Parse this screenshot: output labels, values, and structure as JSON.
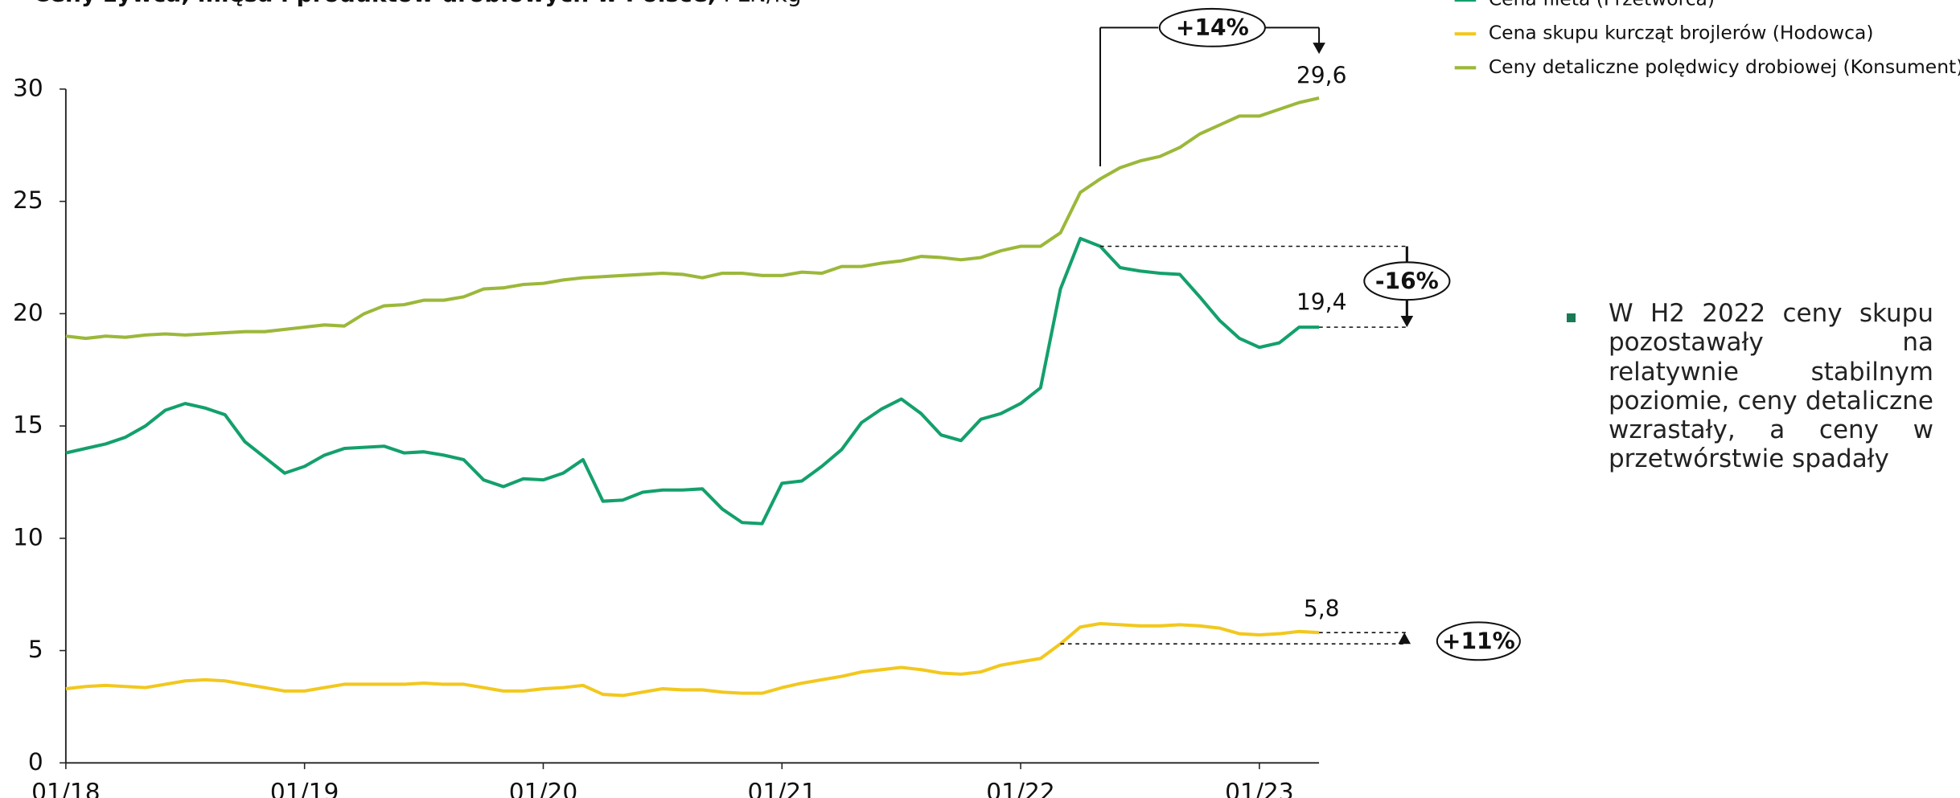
{
  "chart_data": {
    "type": "line",
    "title": "Ceny żywca, mięsa i produktów drobiowych w Polsce,",
    "unit": "PLN/kg",
    "categories": [
      "01/18",
      null,
      null,
      null,
      null,
      null,
      null,
      null,
      null,
      null,
      null,
      null,
      "01/19",
      null,
      null,
      null,
      null,
      null,
      null,
      null,
      null,
      null,
      null,
      null,
      "01/20",
      null,
      null,
      null,
      null,
      null,
      null,
      null,
      null,
      null,
      null,
      null,
      "01/21",
      null,
      null,
      null,
      null,
      null,
      null,
      null,
      null,
      null,
      null,
      null,
      "01/22",
      null,
      null,
      null,
      null,
      null,
      null,
      null,
      null,
      null,
      null,
      null,
      "01/23",
      null,
      null,
      null
    ],
    "series": [
      {
        "name": "Cena fileta (Przetwórca)",
        "color": "#13a06c",
        "values": [
          13.8,
          14.0,
          14.2,
          14.5,
          15.0,
          15.7,
          16.0,
          15.8,
          15.5,
          14.3,
          13.6,
          12.9,
          13.2,
          13.7,
          14.0,
          14.05,
          14.1,
          13.8,
          13.85,
          13.7,
          13.5,
          12.6,
          12.3,
          12.65,
          12.6,
          12.9,
          13.5,
          11.65,
          11.7,
          12.05,
          12.15,
          12.15,
          12.2,
          11.3,
          10.7,
          10.65,
          12.45,
          12.55,
          13.2,
          13.95,
          15.15,
          15.75,
          16.2,
          15.55,
          14.6,
          14.35,
          15.3,
          15.55,
          16.0,
          16.7,
          21.1,
          23.35,
          23.0,
          22.05,
          21.9,
          21.8,
          21.75,
          20.75,
          19.7,
          18.9,
          18.5,
          18.7,
          19.4,
          19.4
        ]
      },
      {
        "name": "Cena skupu kurcząt brojlerów (Hodowca)",
        "color": "#f2c81e",
        "values": [
          3.3,
          3.4,
          3.45,
          3.4,
          3.35,
          3.5,
          3.65,
          3.7,
          3.65,
          3.5,
          3.35,
          3.2,
          3.2,
          3.35,
          3.5,
          3.5,
          3.5,
          3.5,
          3.55,
          3.5,
          3.5,
          3.35,
          3.2,
          3.2,
          3.3,
          3.35,
          3.45,
          3.05,
          3.0,
          3.15,
          3.3,
          3.25,
          3.25,
          3.15,
          3.1,
          3.1,
          3.35,
          3.55,
          3.7,
          3.85,
          4.05,
          4.15,
          4.25,
          4.15,
          4.0,
          3.95,
          4.05,
          4.35,
          4.5,
          4.65,
          5.3,
          6.05,
          6.2,
          6.15,
          6.1,
          6.1,
          6.15,
          6.1,
          6.0,
          5.75,
          5.7,
          5.75,
          5.85,
          5.8
        ]
      },
      {
        "name": "Ceny detaliczne polędwicy drobiowej (Konsument)",
        "color": "#9bb83a",
        "values": [
          19.0,
          18.9,
          19.0,
          18.95,
          19.05,
          19.1,
          19.05,
          19.1,
          19.15,
          19.2,
          19.2,
          19.3,
          19.4,
          19.5,
          19.45,
          20.0,
          20.35,
          20.4,
          20.6,
          20.6,
          20.75,
          21.1,
          21.15,
          21.3,
          21.35,
          21.5,
          21.6,
          21.65,
          21.7,
          21.75,
          21.8,
          21.75,
          21.6,
          21.8,
          21.8,
          21.7,
          21.7,
          21.85,
          21.8,
          22.1,
          22.1,
          22.25,
          22.35,
          22.55,
          22.5,
          22.4,
          22.5,
          22.8,
          23.0,
          23.0,
          23.6,
          25.4,
          26.0,
          26.5,
          26.8,
          27.0,
          27.4,
          28.0,
          28.4,
          28.8,
          28.8,
          29.1,
          29.4,
          29.6
        ]
      }
    ],
    "ylim": [
      0,
      30
    ],
    "yticks": [
      0,
      5,
      10,
      15,
      20,
      25,
      30
    ],
    "annotations": [
      "+14%",
      "29,6",
      "-16%",
      "19,4",
      "5,8",
      "+11%"
    ],
    "note": "W H2 2022 ceny skupu pozostawały na relatywnie stabilnym poziomie, ceny detaliczne wzrastały, a ceny w przetwórstwie spadały"
  }
}
